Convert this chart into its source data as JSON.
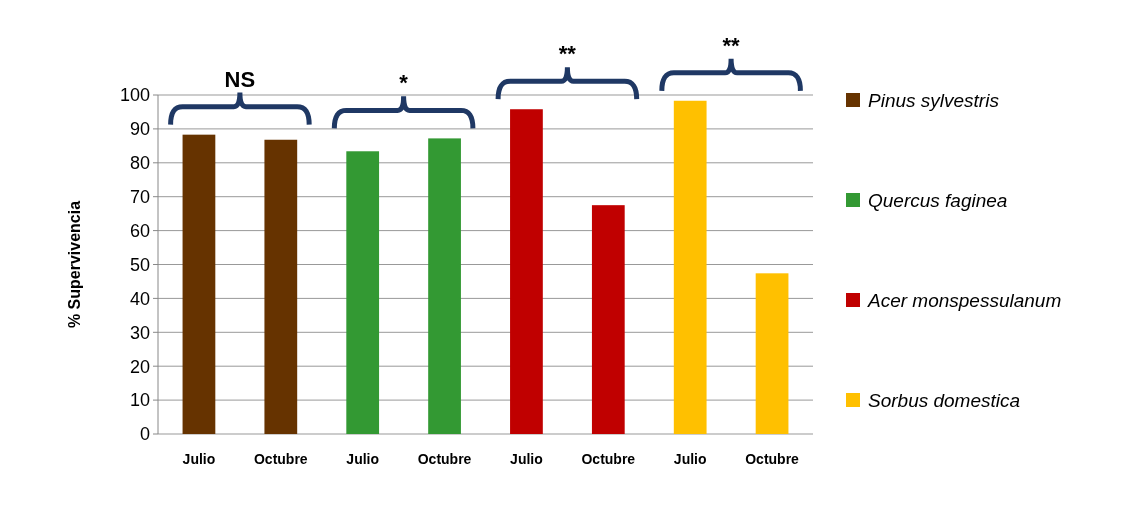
{
  "chart_data": {
    "type": "bar",
    "ylabel": "% Supervivencia",
    "categories": [
      "Julio",
      "Octubre",
      "Julio",
      "Octubre",
      "Julio",
      "Octubre",
      "Julio",
      "Octubre"
    ],
    "series": [
      {
        "name": "Pinus sylvestris",
        "color": "#663300",
        "values": [
          88.3,
          86.8,
          null,
          null,
          null,
          null,
          null,
          null
        ]
      },
      {
        "name": "Quercus faginea",
        "color": "#339933",
        "values": [
          null,
          null,
          83.4,
          87.2,
          null,
          null,
          null,
          null
        ]
      },
      {
        "name": "Acer monspessulanum",
        "color": "#c00000",
        "values": [
          null,
          null,
          null,
          null,
          95.8,
          67.5,
          null,
          null
        ]
      },
      {
        "name": "Sorbus domestica",
        "color": "#ffc000",
        "values": [
          null,
          null,
          null,
          null,
          null,
          null,
          98.3,
          47.4
        ]
      }
    ],
    "ylim": [
      0,
      100
    ],
    "yticks": [
      0,
      10,
      20,
      30,
      40,
      50,
      60,
      70,
      80,
      90,
      100
    ],
    "grid": "y",
    "legend": "right",
    "annotations": [
      "NS",
      "*",
      "**",
      "**"
    ]
  }
}
